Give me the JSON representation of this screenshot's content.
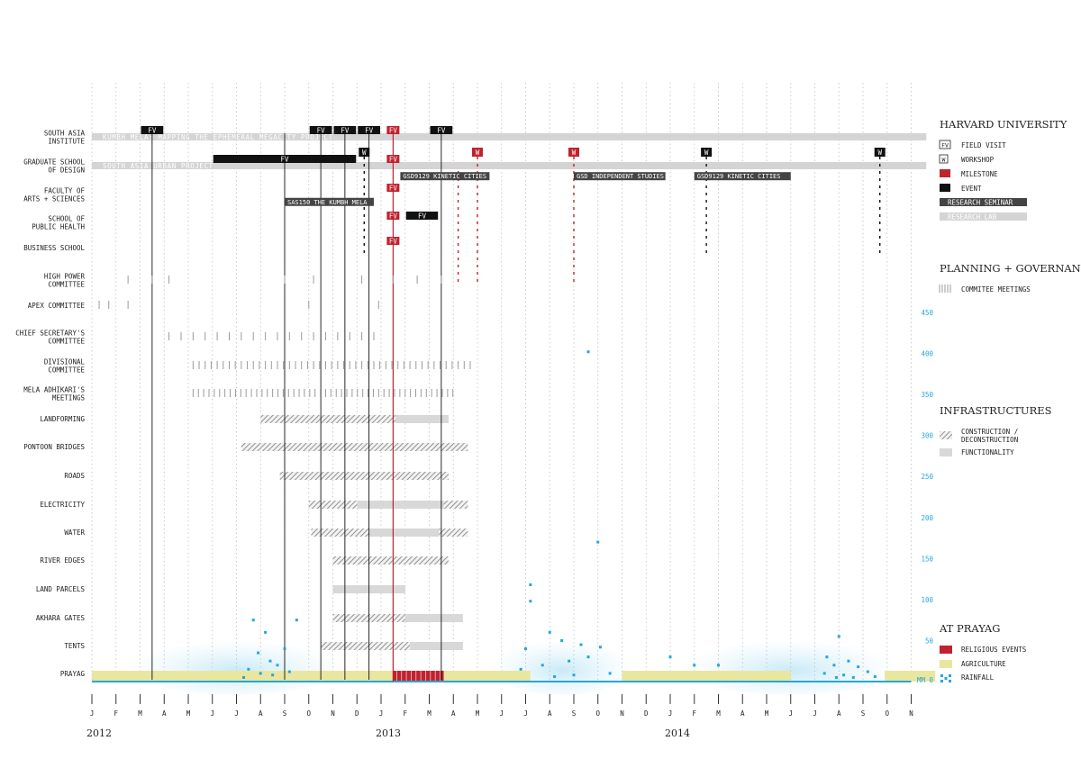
{
  "chart_data": {
    "type": "timeline",
    "title": "",
    "months": [
      "J",
      "F",
      "M",
      "A",
      "M",
      "J",
      "J",
      "A",
      "S",
      "O",
      "N",
      "D",
      "J",
      "F",
      "M",
      "A",
      "M",
      "J",
      "J",
      "A",
      "S",
      "O",
      "N",
      "D",
      "J",
      "F",
      "M",
      "A",
      "M",
      "J",
      "J",
      "A",
      "S",
      "O",
      "N"
    ],
    "years": [
      {
        "label": "2012",
        "month": 0
      },
      {
        "label": "2013",
        "month": 12
      },
      {
        "label": "2014",
        "month": 24
      }
    ],
    "rows": [
      "SOUTH ASIA\nINSTITUTE",
      "GRADUATE SCHOOL\nOF DESIGN",
      "FACULTY OF\nARTS + SCIENCES",
      "SCHOOL OF\nPUBLIC HEALTH",
      "BUSINESS SCHOOL",
      "HIGH POWER\nCOMMITTEE",
      "APEX COMMITTEE",
      "CHIEF SECRETARY'S\nCOMMITTEE",
      "DIVISIONAL\nCOMMITTEE",
      "MELA ADHIKARI'S\nMEETINGS",
      "LANDFORMING",
      "PONTOON BRIDGES",
      "ROADS",
      "ELECTRICITY",
      "WATER",
      "RIVER EDGES",
      "LAND PARCELS",
      "AKHARA GATES",
      "TENTS",
      "PRAYAG"
    ],
    "research_labs": [
      {
        "row": 0,
        "start": 0,
        "end": 35,
        "label": "KUMBH MELA: MAPPING THE EPHEMERAL MEGACITY  PROJECT"
      },
      {
        "row": 1,
        "start": 0,
        "end": 35,
        "label": "SOUTH ASIA URBAN PROJECT"
      }
    ],
    "field_visits": [
      {
        "row": 0,
        "start": 2.0,
        "end": 3.0,
        "label": "FV"
      },
      {
        "row": 0,
        "start": 9.0,
        "end": 10.0,
        "label": "FV"
      },
      {
        "row": 0,
        "start": 10.0,
        "end": 11.0,
        "label": "FV"
      },
      {
        "row": 0,
        "start": 11.0,
        "end": 12.0,
        "label": "FV"
      },
      {
        "row": 0,
        "start": 14.0,
        "end": 15.0,
        "label": "FV"
      },
      {
        "row": 1,
        "start": 5.0,
        "end": 11.0,
        "label": "FV"
      },
      {
        "row": 3,
        "start": 13.0,
        "end": 14.4,
        "label": "FV"
      }
    ],
    "milestones": [
      {
        "row": 0,
        "month": 12.5,
        "label": "FV",
        "line_to": 2
      },
      {
        "row": 1,
        "month": 12.5,
        "label": "FV",
        "line_to": 19
      },
      {
        "row": 2,
        "month": 12.5,
        "label": "FV",
        "line_to": null
      },
      {
        "row": 3,
        "month": 12.5,
        "label": "FV",
        "line_to": null
      },
      {
        "row": 4,
        "month": 12.5,
        "label": "FV",
        "line_to": null
      }
    ],
    "workshops": [
      {
        "row": 0.5,
        "month": 11.3,
        "label": "W",
        "type": "event",
        "line_to": 4
      },
      {
        "row": 0.5,
        "month": 16.0,
        "label": "W",
        "type": "milestone",
        "line_to": 5
      },
      {
        "row": 0.5,
        "month": 20.0,
        "label": "W",
        "type": "milestone",
        "line_to": 5
      },
      {
        "row": 0.5,
        "month": 25.5,
        "label": "W",
        "type": "event",
        "line_to": 4
      },
      {
        "row": 0.5,
        "month": 32.7,
        "label": "W",
        "type": "event",
        "line_to": 4
      }
    ],
    "research_seminars": [
      {
        "row": 1.35,
        "start": 12.8,
        "end": 16.5,
        "label": "GSD9129 KINETIC CITIES"
      },
      {
        "row": 1.35,
        "start": 20.0,
        "end": 23.8,
        "label": "GSD INDEPENDENT STUDIES"
      },
      {
        "row": 1.35,
        "start": 25.0,
        "end": 29.0,
        "label": "GSD9129 KINETIC CITIES"
      },
      {
        "row": 2.25,
        "start": 8.0,
        "end": 11.7,
        "label": "SAS150 THE KUMBH MELA"
      }
    ],
    "infrastructure": [
      {
        "row": "LANDFORMING",
        "construction": [
          7.0,
          12.6
        ],
        "functionality": [
          12.6,
          14.8
        ]
      },
      {
        "row": "PONTOON BRIDGES",
        "construction": [
          6.2,
          15.6
        ],
        "functionality": null
      },
      {
        "row": "ROADS",
        "construction": [
          7.8,
          14.8
        ],
        "functionality": null
      },
      {
        "row": "ELECTRICITY",
        "construction": [
          9.0,
          11.0
        ],
        "functionality": [
          11.0,
          14.6
        ],
        "construction2": [
          14.6,
          15.6
        ]
      },
      {
        "row": "WATER",
        "construction": [
          9.1,
          11.5
        ],
        "functionality": [
          11.5,
          14.4
        ],
        "construction2": [
          14.4,
          15.6
        ]
      },
      {
        "row": "RIVER EDGES",
        "construction": [
          10.0,
          14.8
        ],
        "functionality": null
      },
      {
        "row": "LAND PARCELS",
        "construction": null,
        "functionality": [
          10.0,
          13.0
        ]
      },
      {
        "row": "AKHARA GATES",
        "construction": [
          10.0,
          13.0
        ],
        "functionality": [
          13.0,
          15.4
        ]
      },
      {
        "row": "TENTS",
        "construction": [
          9.5,
          13.2
        ],
        "functionality": [
          13.2,
          15.4
        ]
      }
    ],
    "committee_meetings": [
      {
        "row": "HIGH POWER\nCOMMITTEE",
        "months": [
          1.5,
          2.5,
          3.2,
          8.0,
          9.2,
          11.2,
          12.5,
          13.5,
          14.5
        ]
      },
      {
        "row": "APEX COMMITTEE",
        "months": [
          0.3,
          0.7,
          1.5,
          9.0,
          11.9
        ]
      },
      {
        "row": "CHIEF SECRETARY'S\nCOMMITTEE",
        "months": [
          3.2,
          3.7,
          4.2,
          4.7,
          5.2,
          5.7,
          6.2,
          6.7,
          7.2,
          7.7,
          8.2,
          8.7,
          9.2,
          9.7,
          10.2,
          10.7,
          11.2,
          11.7
        ]
      },
      {
        "row": "DIVISIONAL\nCOMMITTEE",
        "start": 4.2,
        "end": 15.9,
        "step": 0.25
      },
      {
        "row": "MELA ADHIKARI'S\nMEETINGS",
        "start": 4.2,
        "end": 15.0,
        "step": 0.22
      }
    ],
    "religious_events": [
      12.5,
      14.6
    ],
    "agriculture": [
      [
        0.0,
        12.5
      ],
      [
        14.6,
        18.2
      ],
      [
        22.0,
        29.0
      ],
      [
        32.9,
        35.0
      ]
    ],
    "rainfall_axis": {
      "min": 0,
      "max": 450,
      "ticks": [
        50,
        100,
        150,
        200,
        250,
        300,
        350,
        400,
        450
      ],
      "unit": "MM"
    },
    "rainfall_points": [
      {
        "month": 6.7,
        "mm": 75
      },
      {
        "month": 7.2,
        "mm": 60
      },
      {
        "month": 6.9,
        "mm": 35
      },
      {
        "month": 7.4,
        "mm": 25
      },
      {
        "month": 8.5,
        "mm": 75
      },
      {
        "month": 8.0,
        "mm": 40
      },
      {
        "month": 7.7,
        "mm": 20
      },
      {
        "month": 6.5,
        "mm": 15
      },
      {
        "month": 7.0,
        "mm": 10
      },
      {
        "month": 8.2,
        "mm": 12
      },
      {
        "month": 7.5,
        "mm": 8
      },
      {
        "month": 6.3,
        "mm": 5
      },
      {
        "month": 18.2,
        "mm": 118
      },
      {
        "month": 18.2,
        "mm": 98
      },
      {
        "month": 18.0,
        "mm": 40
      },
      {
        "month": 17.8,
        "mm": 15
      },
      {
        "month": 19.0,
        "mm": 60
      },
      {
        "month": 19.5,
        "mm": 50
      },
      {
        "month": 20.3,
        "mm": 45
      },
      {
        "month": 21.1,
        "mm": 42
      },
      {
        "month": 20.6,
        "mm": 30
      },
      {
        "month": 19.8,
        "mm": 25
      },
      {
        "month": 18.7,
        "mm": 20
      },
      {
        "month": 21.5,
        "mm": 10
      },
      {
        "month": 20.0,
        "mm": 8
      },
      {
        "month": 19.2,
        "mm": 6
      },
      {
        "month": 21.0,
        "mm": 170
      },
      {
        "month": 20.6,
        "mm": 402
      },
      {
        "month": 24.0,
        "mm": 30
      },
      {
        "month": 25.0,
        "mm": 20
      },
      {
        "month": 26.0,
        "mm": 20
      },
      {
        "month": 31.0,
        "mm": 55
      },
      {
        "month": 30.5,
        "mm": 30
      },
      {
        "month": 30.8,
        "mm": 20
      },
      {
        "month": 31.4,
        "mm": 25
      },
      {
        "month": 31.8,
        "mm": 18
      },
      {
        "month": 32.2,
        "mm": 12
      },
      {
        "month": 30.4,
        "mm": 10
      },
      {
        "month": 31.2,
        "mm": 8
      },
      {
        "month": 30.9,
        "mm": 5
      },
      {
        "month": 31.6,
        "mm": 5
      },
      {
        "month": 32.5,
        "mm": 6
      }
    ]
  },
  "legend": {
    "harvard": {
      "title": "HARVARD UNIVERSITY",
      "items": [
        {
          "swatch": "fv",
          "label": "FIELD VISIT",
          "code": "FV"
        },
        {
          "swatch": "w",
          "label": "WORKSHOP",
          "code": "W"
        },
        {
          "swatch": "milestone",
          "label": "MILESTONE"
        },
        {
          "swatch": "event",
          "label": "EVENT"
        },
        {
          "swatch": "seminar",
          "label": "RESEARCH SEMINAR"
        },
        {
          "swatch": "lab",
          "label": "RESEARCH LAB"
        }
      ]
    },
    "planning": {
      "title": "PLANNING + GOVERNANCE",
      "items": [
        {
          "swatch": "meeting",
          "label": "COMMITEE MEETINGS"
        }
      ]
    },
    "infra": {
      "title": "INFRASTRUCTURES",
      "items": [
        {
          "swatch": "hatch",
          "label": "CONSTRUCTION /",
          "label2": "DECONSTRUCTION"
        },
        {
          "swatch": "func",
          "label": "FUNCTIONALITY"
        }
      ]
    },
    "prayag": {
      "title": "AT PRAYAG",
      "items": [
        {
          "swatch": "religious",
          "label": "RELIGIOUS EVENTS"
        },
        {
          "swatch": "agri",
          "label": "AGRICULTURE"
        },
        {
          "swatch": "rain",
          "label": "RAINFALL"
        }
      ]
    }
  },
  "colors": {
    "red": "#c0222e",
    "black": "#111111",
    "seminar": "#444444",
    "lab": "#d4d4d4",
    "func": "#d8d8d8",
    "agri": "#e9e6a0",
    "rain": "#22a8d8",
    "grid": "#bfbfbf",
    "text": "#222222"
  }
}
